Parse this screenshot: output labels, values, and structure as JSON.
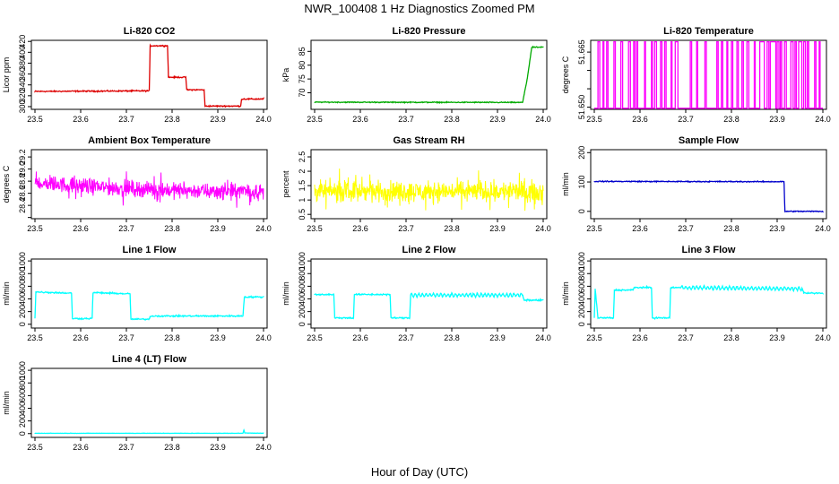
{
  "figure": {
    "title": "NWR_100408  1 Hz Diagnostics Zoomed PM",
    "xlabel": "Hour of Day (UTC)"
  },
  "chart_data": [
    {
      "type": "line",
      "title": "Li-820 CO2",
      "ylabel": "Licor ppm",
      "color": "#dd0000",
      "xlim": [
        23.5,
        24.0
      ],
      "ylim": [
        295,
        422
      ],
      "xticks": [
        "23.5",
        "23.6",
        "23.7",
        "23.8",
        "23.9",
        "24.0"
      ],
      "yticks": [
        300,
        320,
        340,
        360,
        380,
        400,
        420
      ],
      "series": [
        {
          "style": "step",
          "noise": 1,
          "points": [
            [
              23.5,
              328
            ],
            [
              23.75,
              329
            ],
            [
              23.752,
              412
            ],
            [
              23.79,
              412
            ],
            [
              23.792,
              354
            ],
            [
              23.83,
              354
            ],
            [
              23.832,
              331
            ],
            [
              23.87,
              331
            ],
            [
              23.872,
              301
            ],
            [
              23.95,
              301
            ],
            [
              23.952,
              314
            ],
            [
              24.0,
              314
            ]
          ]
        }
      ]
    },
    {
      "type": "line",
      "title": "Li-820 Pressure",
      "ylabel": "kPa",
      "color": "#00aa00",
      "xlim": [
        23.5,
        24.0
      ],
      "ylim": [
        64,
        89
      ],
      "xticks": [
        "23.5",
        "23.6",
        "23.7",
        "23.8",
        "23.9",
        "24.0"
      ],
      "yticks": [
        70,
        75,
        80,
        85
      ],
      "series": [
        {
          "style": "step",
          "noise": 0.15,
          "points": [
            [
              23.5,
              66.6
            ],
            [
              23.955,
              66.5
            ],
            [
              23.965,
              75.0
            ],
            [
              23.975,
              86.5
            ],
            [
              24.0,
              86.5
            ]
          ]
        }
      ]
    },
    {
      "type": "line",
      "title": "Li-820 Temperature",
      "ylabel": "degrees C",
      "color": "#ff00ff",
      "xlim": [
        23.5,
        24.0
      ],
      "ylim": [
        51.6494,
        51.6682
      ],
      "xticks": [
        "23.5",
        "23.6",
        "23.7",
        "23.8",
        "23.9",
        "24.0"
      ],
      "yticks": [
        51.65,
        51.655,
        51.66,
        51.665
      ],
      "yticklabels": [
        "51.650",
        "",
        "",
        "51.665"
      ],
      "series": [
        {
          "style": "binary",
          "low": 51.6497,
          "high": 51.6678,
          "intervals": [
            [
              23.508,
              23.512
            ],
            [
              23.519,
              23.521
            ],
            [
              23.527,
              23.53
            ],
            [
              23.543,
              23.546
            ],
            [
              23.558,
              23.562
            ],
            [
              23.575,
              23.579
            ],
            [
              23.586,
              23.589
            ],
            [
              23.593,
              23.595
            ],
            [
              23.61,
              23.612
            ],
            [
              23.625,
              23.627
            ],
            [
              23.632,
              23.636
            ],
            [
              23.645,
              23.648
            ],
            [
              23.654,
              23.657
            ],
            [
              23.668,
              23.67
            ],
            [
              23.677,
              23.683
            ],
            [
              23.71,
              23.713
            ],
            [
              23.724,
              23.726
            ],
            [
              23.742,
              23.745
            ],
            [
              23.768,
              23.771
            ],
            [
              23.778,
              23.781
            ],
            [
              23.79,
              23.792
            ],
            [
              23.8,
              23.803
            ],
            [
              23.812,
              23.815
            ],
            [
              23.823,
              23.826
            ],
            [
              23.834,
              23.838
            ],
            [
              23.85,
              23.852
            ],
            [
              23.862,
              23.872
            ],
            [
              23.878,
              23.882
            ],
            [
              23.885,
              23.897
            ],
            [
              23.9,
              23.904
            ],
            [
              23.907,
              23.91
            ],
            [
              23.916,
              23.92
            ],
            [
              23.93,
              23.935
            ],
            [
              23.939,
              23.942
            ],
            [
              23.947,
              23.954
            ],
            [
              23.958,
              23.962
            ],
            [
              23.966,
              23.969
            ],
            [
              23.982,
              23.985
            ],
            [
              23.992,
              23.994
            ]
          ]
        }
      ]
    },
    {
      "type": "line",
      "title": "Ambient Box Temperature",
      "ylabel": "degrees C",
      "color": "#ff00ff",
      "xlim": [
        23.5,
        24.0
      ],
      "ylim": [
        28.18,
        29.32
      ],
      "xticks": [
        "23.5",
        "23.6",
        "23.7",
        "23.8",
        "23.9",
        "24.0"
      ],
      "yticks": [
        28.2,
        28.4,
        28.6,
        28.8,
        29.0,
        29.2
      ],
      "yticklabels": [
        "",
        "28.4",
        "28.6",
        "28.8",
        "29.0",
        "29.2"
      ],
      "series": [
        {
          "style": "noise",
          "noise": 0.11,
          "spikes": 0.18,
          "points": [
            [
              23.5,
              28.78
            ],
            [
              23.6,
              28.72
            ],
            [
              23.7,
              28.68
            ],
            [
              23.8,
              28.65
            ],
            [
              23.9,
              28.63
            ],
            [
              24.0,
              28.63
            ]
          ]
        }
      ]
    },
    {
      "type": "line",
      "title": "Gas Stream RH",
      "ylabel": "percent",
      "color": "#ffff00",
      "xlim": [
        23.5,
        24.0
      ],
      "ylim": [
        0.35,
        2.75
      ],
      "xticks": [
        "23.5",
        "23.6",
        "23.7",
        "23.8",
        "23.9",
        "24.0"
      ],
      "yticks": [
        0.5,
        1.0,
        1.5,
        2.0,
        2.5
      ],
      "series": [
        {
          "style": "noise",
          "noise": 0.3,
          "spikes": 0.45,
          "points": [
            [
              23.5,
              1.3
            ],
            [
              24.0,
              1.3
            ]
          ]
        }
      ]
    },
    {
      "type": "line",
      "title": "Sample Flow",
      "ylabel": "ml/min",
      "color": "#0000cc",
      "xlim": [
        23.5,
        24.0
      ],
      "ylim": [
        -25,
        210
      ],
      "xticks": [
        "23.5",
        "23.6",
        "23.7",
        "23.8",
        "23.9",
        "24.0"
      ],
      "yticks": [
        0,
        100,
        200
      ],
      "series": [
        {
          "style": "step",
          "noise": 1.5,
          "points": [
            [
              23.5,
              102
            ],
            [
              23.915,
              101
            ],
            [
              23.917,
              0
            ],
            [
              24.0,
              0
            ]
          ]
        }
      ]
    },
    {
      "type": "line",
      "title": "Line 1 Flow",
      "ylabel": "ml/min",
      "color": "#00ffff",
      "xlim": [
        23.5,
        24.0
      ],
      "ylim": [
        -60,
        1030
      ],
      "xticks": [
        "23.5",
        "23.6",
        "23.7",
        "23.8",
        "23.9",
        "24.0"
      ],
      "yticks": [
        0,
        200,
        400,
        600,
        800,
        1000
      ],
      "series": [
        {
          "style": "step",
          "noise": 10,
          "points": [
            [
              23.5,
              100
            ],
            [
              23.502,
              510
            ],
            [
              23.58,
              490
            ],
            [
              23.582,
              90
            ],
            [
              23.625,
              90
            ],
            [
              23.627,
              500
            ],
            [
              23.708,
              480
            ],
            [
              23.71,
              80
            ],
            [
              23.75,
              80
            ],
            [
              23.752,
              130
            ],
            [
              23.955,
              130
            ],
            [
              23.958,
              430
            ],
            [
              24.0,
              430
            ]
          ]
        }
      ]
    },
    {
      "type": "line",
      "title": "Line 2 Flow",
      "ylabel": "ml/min",
      "color": "#00ffff",
      "xlim": [
        23.5,
        24.0
      ],
      "ylim": [
        -60,
        1030
      ],
      "xticks": [
        "23.5",
        "23.6",
        "23.7",
        "23.8",
        "23.9",
        "24.0"
      ],
      "yticks": [
        0,
        200,
        400,
        600,
        800,
        1000
      ],
      "series": [
        {
          "style": "step",
          "noise": 10,
          "wave": [
            23.71,
            23.955,
            25,
            0.008
          ],
          "points": [
            [
              23.5,
              470
            ],
            [
              23.542,
              470
            ],
            [
              23.544,
              100
            ],
            [
              23.585,
              100
            ],
            [
              23.587,
              470
            ],
            [
              23.665,
              470
            ],
            [
              23.667,
              100
            ],
            [
              23.708,
              100
            ],
            [
              23.71,
              460
            ],
            [
              23.955,
              460
            ],
            [
              23.958,
              380
            ],
            [
              24.0,
              380
            ]
          ]
        }
      ]
    },
    {
      "type": "line",
      "title": "Line 3 Flow",
      "ylabel": "ml/min",
      "color": "#00ffff",
      "xlim": [
        23.5,
        24.0
      ],
      "ylim": [
        -60,
        1030
      ],
      "xticks": [
        "23.5",
        "23.6",
        "23.7",
        "23.8",
        "23.9",
        "24.0"
      ],
      "yticks": [
        0,
        200,
        400,
        600,
        800,
        1000
      ],
      "series": [
        {
          "style": "step",
          "noise": 10,
          "wave": [
            23.69,
            23.955,
            25,
            0.008
          ],
          "points": [
            [
              23.5,
              100
            ],
            [
              23.502,
              560
            ],
            [
              23.508,
              100
            ],
            [
              23.542,
              100
            ],
            [
              23.544,
              540
            ],
            [
              23.585,
              540
            ],
            [
              23.587,
              580
            ],
            [
              23.615,
              580
            ],
            [
              23.625,
              580
            ],
            [
              23.627,
              100
            ],
            [
              23.665,
              100
            ],
            [
              23.667,
              580
            ],
            [
              23.955,
              560
            ],
            [
              23.958,
              490
            ],
            [
              24.0,
              490
            ]
          ]
        }
      ]
    },
    {
      "type": "line",
      "title": "Line 4 (LT) Flow",
      "ylabel": "ml/min",
      "color": "#00ffff",
      "xlim": [
        23.5,
        24.0
      ],
      "ylim": [
        -60,
        1030
      ],
      "xticks": [
        "23.5",
        "23.6",
        "23.7",
        "23.8",
        "23.9",
        "24.0"
      ],
      "yticks": [
        0,
        200,
        400,
        600,
        800,
        1000
      ],
      "series": [
        {
          "style": "step",
          "noise": 2,
          "points": [
            [
              23.5,
              5
            ],
            [
              23.955,
              5
            ],
            [
              23.957,
              55
            ],
            [
              23.959,
              10
            ],
            [
              24.0,
              5
            ]
          ]
        }
      ]
    }
  ]
}
